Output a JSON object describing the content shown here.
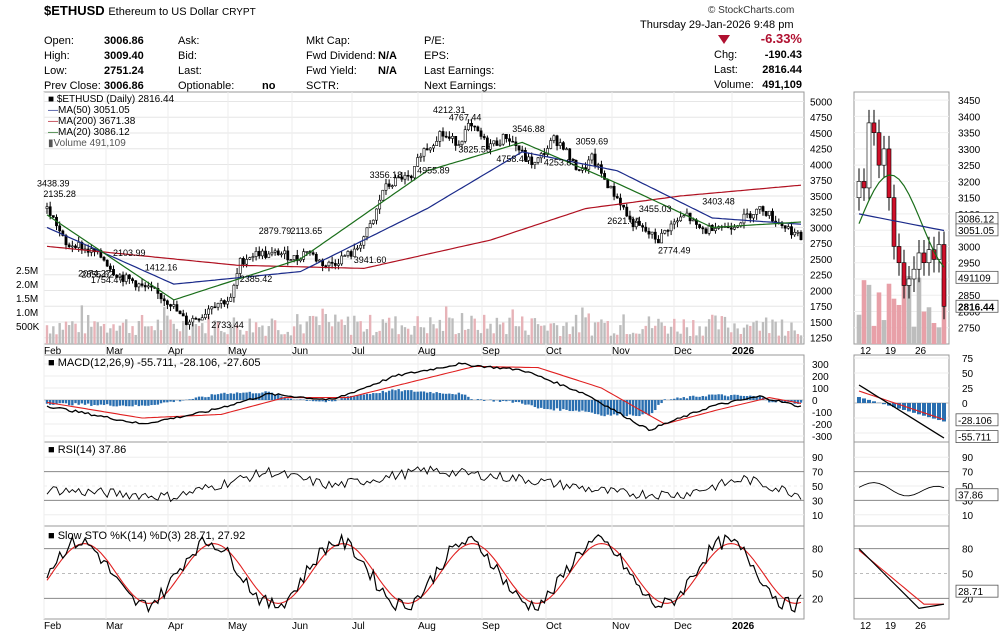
{
  "header": {
    "symbol": "$ETHUSD",
    "name": "Ethereum to US Dollar",
    "exchange": "CRYPT",
    "copyright": "© StockCharts.com",
    "date": "Thursday   29-Jan-2026   9:48 pm",
    "pct_change": "-6.33%",
    "chg_label": "Chg:",
    "chg_value": "-190.43",
    "last_label": "Last:",
    "last_value": "2816.44",
    "volume_label": "Volume:",
    "volume_value": "491,109",
    "col1": [
      {
        "label": "Open:",
        "value": "3006.86"
      },
      {
        "label": "High:",
        "value": "3009.40"
      },
      {
        "label": "Low:",
        "value": "2751.24"
      },
      {
        "label": "Prev Close:",
        "value": "3006.86"
      }
    ],
    "col2": [
      {
        "label": "Ask:",
        "value": ""
      },
      {
        "label": "Bid:",
        "value": ""
      },
      {
        "label": "Last:",
        "value": ""
      },
      {
        "label": "Optionable:",
        "value": "no"
      }
    ],
    "col3": [
      {
        "label": "Mkt Cap:",
        "value": ""
      },
      {
        "label": "Fwd Dividend:",
        "value": "N/A"
      },
      {
        "label": "Fwd Yield:",
        "value": "N/A"
      },
      {
        "label": "SCTR:",
        "value": ""
      }
    ],
    "col4": [
      {
        "label": "P/E:",
        "value": ""
      },
      {
        "label": "EPS:",
        "value": ""
      },
      {
        "label": "Last Earnings:",
        "value": ""
      },
      {
        "label": "Next Earnings:",
        "value": ""
      }
    ]
  },
  "legend": {
    "main": "$ETHUSD (Daily) 2816.44",
    "ma50": "MA(50) 3051.05",
    "ma200": "MA(200) 3671.38",
    "ma20": "MA(20) 3086.12",
    "volume": "Volume 491,109",
    "macd": "MACD(12,26,9) -55.711, -28.106, -27.605",
    "rsi": "RSI(14) 37.86",
    "sto": "Slow STO %K(14) %D(3) 28.71, 27.92"
  },
  "colors": {
    "ma50": "#1a2a8a",
    "ma200": "#b01020",
    "ma20": "#1a6e1a",
    "macd_hist": "#2a6fb0",
    "signal": "#e02020",
    "volume": "#b8b8b8",
    "down_highlight": "#e8a0a8",
    "red_down": "#d0102a",
    "rsi_fill": "#4a7a4a"
  },
  "chart_data": [
    {
      "type": "candlestick",
      "title": "$ETHUSD (Daily) 2816.44",
      "y_axis_ticks": [
        1250,
        1500,
        1750,
        2000,
        2250,
        2500,
        2750,
        3000,
        3250,
        3500,
        3750,
        4000,
        4250,
        4500,
        4750,
        5000
      ],
      "volume_axis_ticks": [
        "500K",
        "1.0M",
        "1.5M",
        "2.0M",
        "2.5M"
      ],
      "x_tick_labels": [
        "Feb",
        "Mar",
        "Apr",
        "May",
        "Jun",
        "Jul",
        "Aug",
        "Sep",
        "Oct",
        "Nov",
        "Dec",
        "2026"
      ],
      "price_annotations": [
        "3438.39",
        "2855.62",
        "2135.28",
        "2074.27",
        "2103.99",
        "1754.47",
        "1412.16",
        "2733.44",
        "2879.79",
        "2385.42",
        "2113.65",
        "3941.60",
        "3356.18",
        "4955.89",
        "4767.44",
        "4758.41",
        "4212.31",
        "3825.56",
        "3546.88",
        "4253.83",
        "3059.69",
        "2621.04",
        "3455.03",
        "2774.49",
        "3403.48"
      ],
      "close_path": [
        [
          0,
          3300
        ],
        [
          3,
          3050
        ],
        [
          6,
          2700
        ],
        [
          9,
          2750
        ],
        [
          12,
          2650
        ],
        [
          15,
          2600
        ],
        [
          18,
          2500
        ],
        [
          21,
          2300
        ],
        [
          24,
          2200
        ],
        [
          27,
          2150
        ],
        [
          30,
          2050
        ],
        [
          33,
          2000
        ],
        [
          36,
          1900
        ],
        [
          39,
          1800
        ],
        [
          42,
          1600
        ],
        [
          44,
          1500
        ],
        [
          46,
          1550
        ],
        [
          49,
          1600
        ],
        [
          52,
          1780
        ],
        [
          55,
          1820
        ],
        [
          58,
          1850
        ],
        [
          61,
          2450
        ],
        [
          64,
          2550
        ],
        [
          67,
          2600
        ],
        [
          70,
          2550
        ],
        [
          73,
          2600
        ],
        [
          76,
          2550
        ],
        [
          79,
          2500
        ],
        [
          82,
          2650
        ],
        [
          85,
          2500
        ],
        [
          88,
          2400
        ],
        [
          91,
          2450
        ],
        [
          94,
          2550
        ],
        [
          97,
          2600
        ],
        [
          100,
          2850
        ],
        [
          103,
          3100
        ],
        [
          106,
          3600
        ],
        [
          109,
          3700
        ],
        [
          112,
          3800
        ],
        [
          115,
          3750
        ],
        [
          118,
          4200
        ],
        [
          121,
          4300
        ],
        [
          124,
          4500
        ],
        [
          127,
          4400
        ],
        [
          130,
          4350
        ],
        [
          133,
          4600
        ],
        [
          136,
          4500
        ],
        [
          139,
          4300
        ],
        [
          142,
          4350
        ],
        [
          145,
          4450
        ],
        [
          148,
          4300
        ],
        [
          151,
          4100
        ],
        [
          154,
          4000
        ],
        [
          157,
          4200
        ],
        [
          160,
          4400
        ],
        [
          163,
          4300
        ],
        [
          166,
          4000
        ],
        [
          169,
          3900
        ],
        [
          172,
          4100
        ],
        [
          175,
          3850
        ],
        [
          178,
          3600
        ],
        [
          181,
          3400
        ],
        [
          184,
          3100
        ],
        [
          187,
          3000
        ],
        [
          190,
          2900
        ],
        [
          193,
          2800
        ],
        [
          196,
          3000
        ],
        [
          199,
          3100
        ],
        [
          202,
          3200
        ],
        [
          205,
          3000
        ],
        [
          208,
          2950
        ],
        [
          211,
          3050
        ],
        [
          214,
          3000
        ],
        [
          217,
          3050
        ],
        [
          220,
          3150
        ],
        [
          223,
          3250
        ],
        [
          226,
          3300
        ],
        [
          229,
          3150
        ],
        [
          232,
          3050
        ],
        [
          235,
          2950
        ],
        [
          238,
          2816
        ]
      ],
      "ma50_path": [
        [
          0,
          3000
        ],
        [
          40,
          2100
        ],
        [
          80,
          2300
        ],
        [
          120,
          3300
        ],
        [
          150,
          4200
        ],
        [
          180,
          3900
        ],
        [
          210,
          3150
        ],
        [
          238,
          3051
        ]
      ],
      "ma200_path": [
        [
          0,
          2700
        ],
        [
          60,
          2400
        ],
        [
          100,
          2350
        ],
        [
          140,
          2800
        ],
        [
          170,
          3300
        ],
        [
          200,
          3500
        ],
        [
          238,
          3671
        ]
      ],
      "ma20_path": [
        [
          0,
          3200
        ],
        [
          40,
          1850
        ],
        [
          80,
          2500
        ],
        [
          120,
          3900
        ],
        [
          150,
          4350
        ],
        [
          180,
          3700
        ],
        [
          210,
          3000
        ],
        [
          238,
          3086
        ]
      ],
      "last_values": {
        "ma20": "3086.12",
        "ma50": "3051.05",
        "volume": "491109",
        "close": "2816.44"
      }
    },
    {
      "type": "line",
      "title": "MACD(12,26,9) -55.711, -28.106, -27.605",
      "y_axis_ticks": [
        300,
        200,
        100,
        0,
        -100,
        -200,
        -300
      ],
      "last_values": {
        "signal": "-28.106",
        "macd": "-55.711"
      }
    },
    {
      "type": "line",
      "title": "RSI(14) 37.86",
      "y_axis_ticks": [
        90,
        70,
        50,
        30,
        10
      ],
      "last_values": {
        "rsi": "37.86"
      }
    },
    {
      "type": "line",
      "title": "Slow STO %K(14) %D(3) 28.71, 27.92",
      "y_axis_ticks": [
        80,
        50,
        20
      ],
      "last_values": {
        "k": "28.71"
      }
    }
  ],
  "detail": {
    "price_ticks": [
      "3450",
      "3400",
      "3350",
      "3300",
      "3250",
      "3200",
      "3150",
      "3100",
      "3050",
      "3000",
      "2950",
      "2900",
      "2850",
      "2800",
      "2750"
    ],
    "x_labels": [
      "12",
      "19",
      "26"
    ],
    "macd_ticks": [
      "75",
      "50",
      "25",
      "0",
      "-25",
      "-50"
    ],
    "rsi_ticks": [
      "90",
      "70",
      "50",
      "30",
      "10"
    ],
    "sto_ticks": [
      "80",
      "50",
      "20"
    ]
  }
}
